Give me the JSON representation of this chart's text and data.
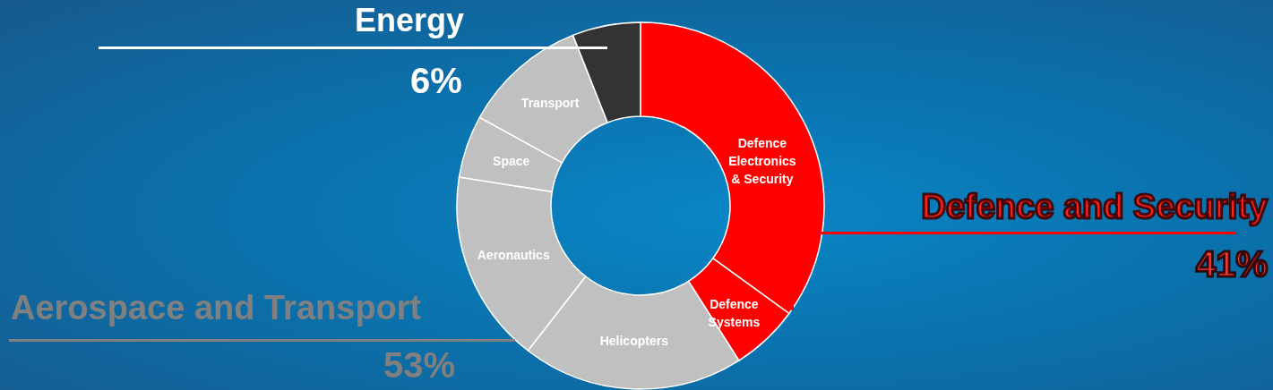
{
  "chart_data": {
    "type": "donut",
    "categories": [
      "Defence Electronics & Security",
      "Defence Systems",
      "Helicopters",
      "Aeronautics",
      "Space",
      "Transport",
      null
    ],
    "values": [
      35,
      6,
      19.5,
      17,
      5.5,
      11,
      6
    ],
    "colors": [
      "#ff0000",
      "#ff0000",
      "#c0c0c0",
      "#c0c0c0",
      "#c0c0c0",
      "#c0c0c0",
      "#333333"
    ],
    "annotations": [
      "Energy",
      "6%",
      "Defence and Security",
      "41%",
      "Aerospace and Transport",
      "53%"
    ]
  }
}
